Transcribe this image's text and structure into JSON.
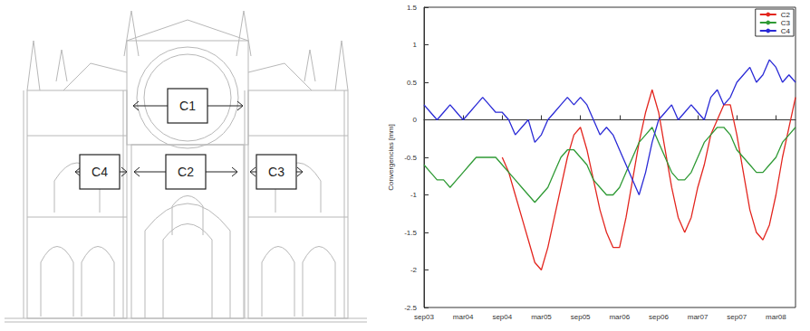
{
  "diagram": {
    "boxes": [
      {
        "label": "C1"
      },
      {
        "label": "C2"
      },
      {
        "label": "C3"
      },
      {
        "label": "C4"
      }
    ]
  },
  "chart_data": {
    "type": "line",
    "y_label": "Convergencias [mm]",
    "categories": [
      "sep03",
      null,
      null,
      null,
      null,
      null,
      "mar04",
      null,
      null,
      null,
      null,
      null,
      "sep04",
      null,
      null,
      null,
      null,
      null,
      "mar05",
      null,
      null,
      null,
      null,
      null,
      "sep05",
      null,
      null,
      null,
      null,
      null,
      "mar06",
      null,
      null,
      null,
      null,
      null,
      "sep06",
      null,
      null,
      null,
      null,
      null,
      "mar07",
      null,
      null,
      null,
      null,
      null,
      "sep07",
      null,
      null,
      null,
      null,
      null,
      "mar08",
      null,
      null,
      null
    ],
    "series": [
      {
        "name": "C2",
        "color": "#e3261f",
        "values": [
          null,
          null,
          null,
          null,
          null,
          null,
          null,
          null,
          null,
          null,
          null,
          null,
          -0.5,
          -0.7,
          -1.0,
          -1.3,
          -1.6,
          -1.9,
          -2.0,
          -1.7,
          -1.3,
          -0.9,
          -0.5,
          -0.2,
          -0.1,
          -0.4,
          -0.8,
          -1.2,
          -1.5,
          -1.7,
          -1.7,
          -1.3,
          -0.8,
          -0.3,
          0.1,
          0.4,
          0.1,
          -0.4,
          -0.9,
          -1.3,
          -1.5,
          -1.3,
          -0.9,
          -0.6,
          -0.2,
          0.0,
          0.2,
          0.2,
          -0.2,
          -0.7,
          -1.2,
          -1.5,
          -1.6,
          -1.4,
          -1.0,
          -0.5,
          -0.1,
          0.3
        ]
      },
      {
        "name": "C3",
        "color": "#2f9a35",
        "values": [
          -0.6,
          -0.7,
          -0.8,
          -0.8,
          -0.9,
          -0.8,
          -0.7,
          -0.6,
          -0.5,
          -0.5,
          -0.5,
          -0.5,
          -0.6,
          -0.7,
          -0.8,
          -0.9,
          -1.0,
          -1.1,
          -1.0,
          -0.9,
          -0.7,
          -0.5,
          -0.4,
          -0.4,
          -0.5,
          -0.6,
          -0.8,
          -0.9,
          -1.0,
          -1.0,
          -0.9,
          -0.7,
          -0.5,
          -0.3,
          -0.2,
          -0.1,
          -0.3,
          -0.5,
          -0.7,
          -0.8,
          -0.8,
          -0.7,
          -0.5,
          -0.3,
          -0.2,
          -0.1,
          -0.1,
          -0.2,
          -0.4,
          -0.5,
          -0.6,
          -0.7,
          -0.7,
          -0.6,
          -0.5,
          -0.3,
          -0.2,
          -0.1
        ]
      },
      {
        "name": "C4",
        "color": "#2a2ad6",
        "values": [
          0.2,
          0.1,
          0.0,
          0.1,
          0.2,
          0.1,
          0.0,
          0.1,
          0.2,
          0.3,
          0.2,
          0.1,
          0.1,
          0.0,
          -0.2,
          -0.1,
          0.0,
          -0.3,
          -0.2,
          0.0,
          0.1,
          0.2,
          0.3,
          0.2,
          0.3,
          0.2,
          0.0,
          -0.2,
          -0.1,
          -0.2,
          -0.4,
          -0.6,
          -0.8,
          -1.0,
          -0.7,
          -0.3,
          0.0,
          0.1,
          0.2,
          0.0,
          0.1,
          0.2,
          0.1,
          0.0,
          0.3,
          0.4,
          0.2,
          0.3,
          0.5,
          0.6,
          0.7,
          0.5,
          0.6,
          0.8,
          0.7,
          0.5,
          0.6,
          0.5
        ]
      }
    ],
    "ylim": [
      -2.5,
      1.5
    ],
    "yticks": [
      -2.5,
      -2,
      -1.5,
      -1,
      -0.5,
      0,
      0.5,
      1,
      1.5
    ],
    "grid": false,
    "legend": "upper right"
  }
}
